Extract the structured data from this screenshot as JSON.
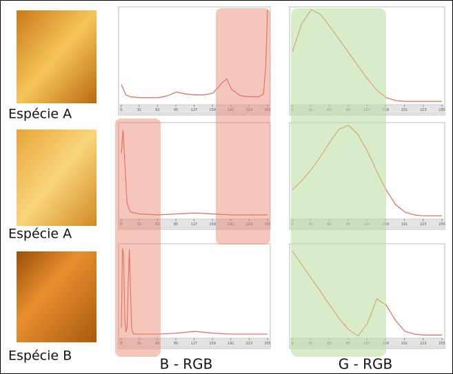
{
  "labels": {
    "species": [
      "Espécie A",
      "Espécie A",
      "Espécie B"
    ],
    "channels": [
      "B - RGB",
      "G - RGB"
    ]
  },
  "chart_data": [
    {
      "type": "line",
      "x": [
        0,
        8,
        16,
        32,
        48,
        64,
        80,
        96,
        112,
        128,
        144,
        160,
        176,
        184,
        192,
        208,
        224,
        240,
        248,
        252,
        255
      ],
      "series": [
        {
          "color": "#e06a5a",
          "values": [
            20,
            9,
            7,
            6,
            6,
            6,
            8,
            12,
            10,
            9,
            9,
            11,
            22,
            26,
            15,
            8,
            7,
            7,
            10,
            40,
            100
          ]
        }
      ],
      "xlim": [
        0,
        255
      ],
      "ylim": [
        0,
        100
      ],
      "xticks": [
        0,
        31,
        63,
        95,
        127,
        159,
        191,
        223,
        255
      ]
    },
    {
      "type": "line",
      "x": [
        0,
        16,
        32,
        48,
        64,
        80,
        96,
        112,
        128,
        144,
        160,
        176,
        192,
        208,
        224,
        240,
        255
      ],
      "series": [
        {
          "color": "#e06a5a",
          "values": [
            55,
            85,
            100,
            95,
            82,
            68,
            54,
            40,
            26,
            14,
            6,
            3,
            2,
            2,
            2,
            2,
            2
          ]
        }
      ],
      "xlim": [
        0,
        255
      ],
      "ylim": [
        0,
        100
      ],
      "xticks": [
        0,
        31,
        63,
        95,
        127,
        159,
        191,
        223,
        255
      ]
    },
    {
      "type": "line",
      "x": [
        0,
        3,
        6,
        10,
        16,
        32,
        64,
        96,
        128,
        160,
        192,
        224,
        255
      ],
      "series": [
        {
          "color": "#e06a5a",
          "values": [
            70,
            95,
            60,
            15,
            6,
            4,
            3,
            4,
            5,
            4,
            3,
            3,
            3
          ]
        }
      ],
      "xlim": [
        0,
        255
      ],
      "ylim": [
        0,
        100
      ],
      "xticks": [
        0,
        31,
        63,
        95,
        127,
        159,
        191,
        223,
        255
      ]
    },
    {
      "type": "line",
      "x": [
        0,
        16,
        32,
        48,
        64,
        80,
        96,
        112,
        128,
        144,
        160,
        176,
        192,
        208,
        224,
        240,
        255
      ],
      "series": [
        {
          "color": "#e06a5a",
          "values": [
            30,
            40,
            52,
            66,
            82,
            96,
            100,
            90,
            72,
            50,
            30,
            14,
            6,
            3,
            2,
            2,
            2
          ]
        }
      ],
      "xlim": [
        0,
        255
      ],
      "ylim": [
        0,
        100
      ],
      "xticks": [
        0,
        31,
        63,
        95,
        127,
        159,
        191,
        223,
        255
      ]
    },
    {
      "type": "line",
      "x": [
        0,
        2,
        4,
        6,
        8,
        10,
        12,
        14,
        16,
        18,
        20,
        24,
        32,
        64,
        96,
        128,
        160,
        192,
        224,
        255
      ],
      "series": [
        {
          "color": "#e06a5a",
          "values": [
            10,
            98,
            90,
            20,
            5,
            10,
            60,
            97,
            50,
            10,
            4,
            3,
            3,
            3,
            4,
            6,
            4,
            3,
            3,
            3
          ]
        }
      ],
      "xlim": [
        0,
        255
      ],
      "ylim": [
        0,
        100
      ],
      "xticks": [
        0,
        31,
        63,
        95,
        127,
        159,
        191,
        223,
        255
      ]
    },
    {
      "type": "line",
      "x": [
        0,
        16,
        32,
        48,
        64,
        80,
        96,
        112,
        128,
        144,
        160,
        176,
        192,
        208,
        224,
        240,
        255
      ],
      "series": [
        {
          "color": "#e06a5a",
          "values": [
            95,
            80,
            65,
            50,
            35,
            20,
            8,
            1,
            15,
            42,
            35,
            18,
            6,
            3,
            2,
            2,
            2
          ]
        }
      ],
      "xlim": [
        0,
        255
      ],
      "ylim": [
        0,
        100
      ],
      "xticks": [
        0,
        31,
        63,
        95,
        127,
        159,
        191,
        223,
        255
      ]
    }
  ]
}
